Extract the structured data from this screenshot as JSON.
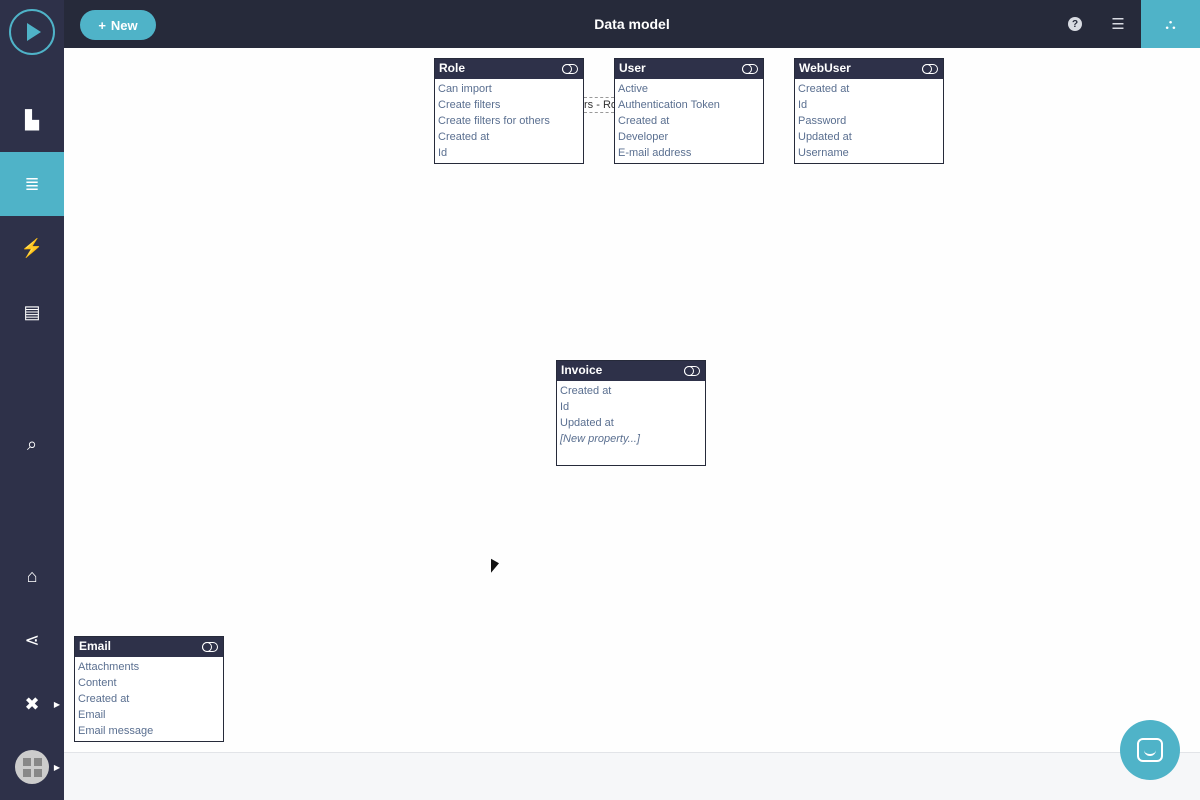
{
  "header": {
    "title": "Data model",
    "new_label": "New",
    "new_icon": "plus-icon"
  },
  "toolbar": {
    "help_icon": "?",
    "list_icon": "list-icon",
    "diagram_icon": "sitemap-icon"
  },
  "sidebar": {
    "items": [
      {
        "name": "pages",
        "icon": "file-icon",
        "glyph": "▙"
      },
      {
        "name": "data",
        "icon": "database-icon",
        "glyph": "≣",
        "active": true
      },
      {
        "name": "actions",
        "icon": "lightning-icon",
        "glyph": "⚡"
      },
      {
        "name": "servers",
        "icon": "server-icon",
        "glyph": "▤"
      },
      {
        "name": "search",
        "icon": "search-icon",
        "glyph": "⌕"
      },
      {
        "name": "store",
        "icon": "store-icon",
        "glyph": "⌂"
      },
      {
        "name": "share",
        "icon": "share-icon",
        "glyph": "⋖"
      },
      {
        "name": "tools",
        "icon": "tools-icon",
        "glyph": "✖"
      }
    ]
  },
  "relation_label": "rs - Ro",
  "entities": [
    {
      "name": "Role",
      "props": [
        "Can import",
        "Create filters",
        "Create filters for others",
        "Created at",
        "Id"
      ]
    },
    {
      "name": "User",
      "props": [
        "Active",
        "Authentication Token",
        "Created at",
        "Developer",
        "E-mail address"
      ]
    },
    {
      "name": "WebUser",
      "props": [
        "Created at",
        "Id",
        "Password",
        "Updated at",
        "Username"
      ]
    },
    {
      "name": "Invoice",
      "props": [
        "Created at",
        "Id",
        "Updated at"
      ],
      "new_prop": "[New property...]"
    },
    {
      "name": "Email",
      "props": [
        "Attachments",
        "Content",
        "Created at",
        "Email",
        "Email message"
      ]
    }
  ],
  "colors": {
    "accent": "#4fb3c8",
    "sidebar": "#2e3149",
    "topbar": "#262a3a",
    "property_text": "#5a6f90"
  }
}
